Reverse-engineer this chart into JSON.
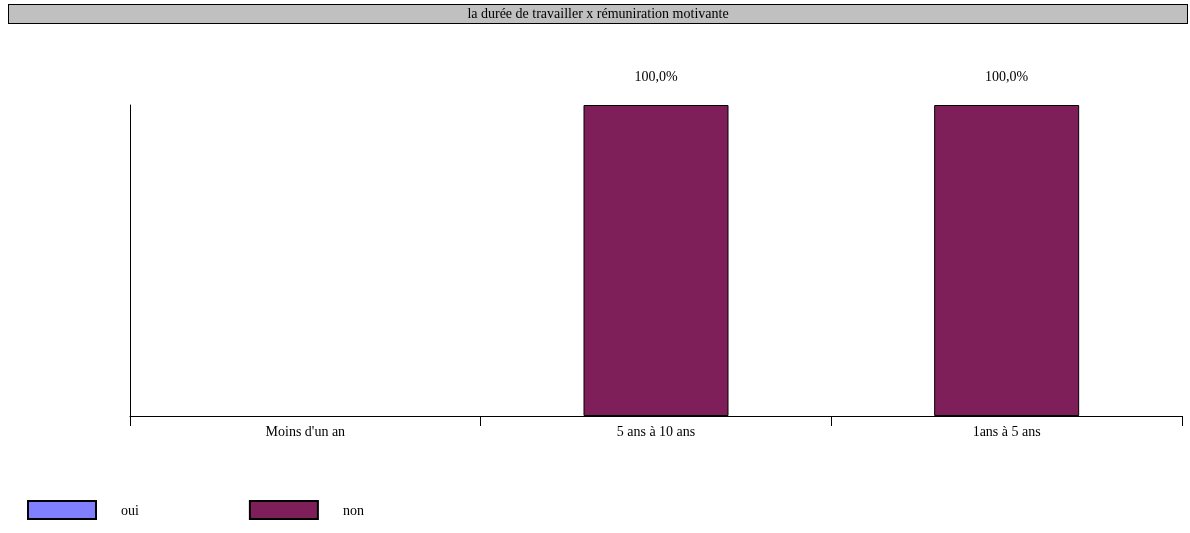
{
  "chart_data": {
    "type": "bar",
    "title": "la durée de travailler x rémuniration motivante",
    "categories": [
      "Moins d'un an",
      "5 ans à 10 ans",
      "1ans à 5 ans"
    ],
    "series": [
      {
        "name": "oui",
        "color": "#8080ff",
        "values": [
          null,
          null,
          null
        ]
      },
      {
        "name": "non",
        "color": "#7f1f5a",
        "values": [
          null,
          100,
          100
        ],
        "value_labels": [
          null,
          "100,0%",
          "100,0%"
        ]
      }
    ],
    "legend": "bottom left"
  }
}
